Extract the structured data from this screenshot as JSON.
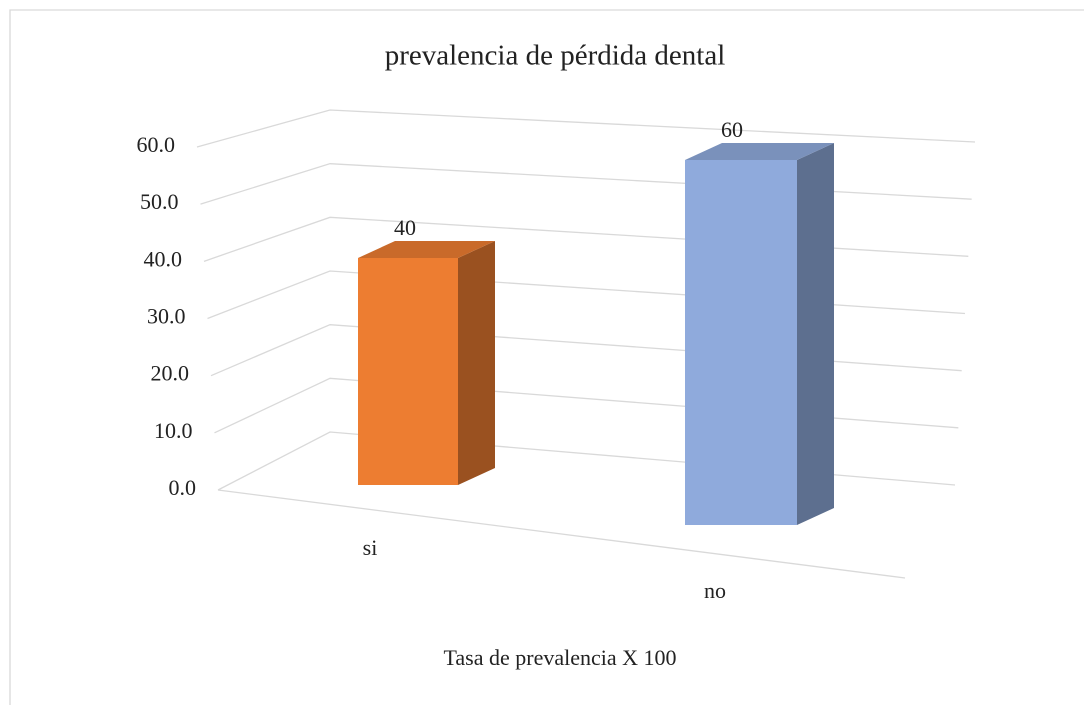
{
  "chart_data": {
    "type": "bar3d",
    "title": "prevalencia de pérdida dental",
    "x_label": "Tasa de prevalencia X 100",
    "categories": [
      "si",
      "no"
    ],
    "values": [
      40,
      60
    ],
    "colors": [
      "#ed7d31",
      "#8faadc"
    ],
    "ylim": [
      0,
      60
    ],
    "yticks": [
      {
        "value": 0,
        "label": "0.0"
      },
      {
        "value": 10,
        "label": "10.0"
      },
      {
        "value": 20,
        "label": "20.0"
      },
      {
        "value": 30,
        "label": "30.0"
      },
      {
        "value": 40,
        "label": "40.0"
      },
      {
        "value": 50,
        "label": "50.0"
      },
      {
        "value": 60,
        "label": "60.0"
      }
    ],
    "grid": true
  }
}
